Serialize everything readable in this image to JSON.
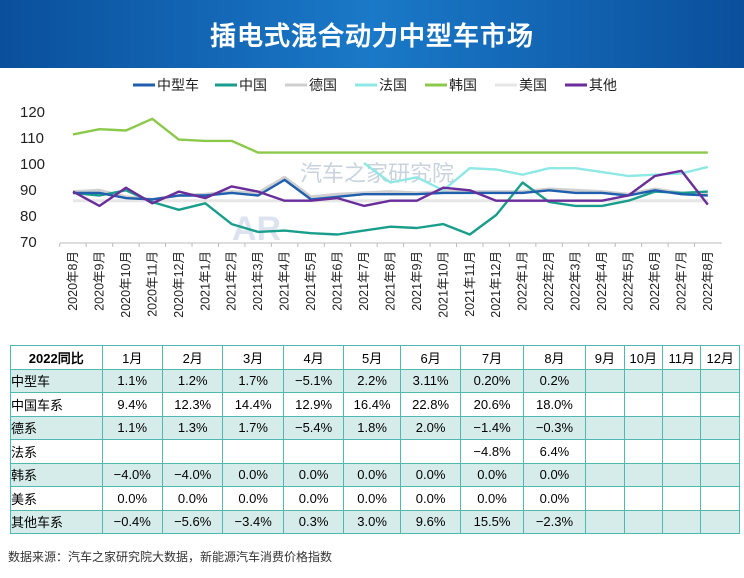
{
  "title": "插电式混合动力中型车市场",
  "chart_data": {
    "type": "line",
    "title": "插电式混合动力中型车市场",
    "ylim": [
      70,
      120
    ],
    "yticks": [
      70,
      80,
      90,
      100,
      110,
      120
    ],
    "legend_position": "top",
    "categories": [
      "2020年8月",
      "2020年9月",
      "2020年10月",
      "2020年11月",
      "2020年12月",
      "2021年1月",
      "2021年2月",
      "2021年3月",
      "2021年4月",
      "2021年5月",
      "2021年6月",
      "2021年7月",
      "2021年8月",
      "2021年9月",
      "2021年10月",
      "2021年11月",
      "2021年12月",
      "2022年1月",
      "2022年2月",
      "2022年3月",
      "2022年4月",
      "2022年5月",
      "2022年6月",
      "2022年7月",
      "2022年8月"
    ],
    "series": [
      {
        "name": "中型车",
        "color": "#1f5fae",
        "values": [
          88.5,
          88.5,
          86.5,
          86,
          87.5,
          87.5,
          88.5,
          87.5,
          93.5,
          86,
          87,
          88,
          88,
          88,
          88.5,
          88.5,
          88.5,
          88.5,
          89.5,
          88.5,
          88.5,
          87.5,
          89.5,
          88,
          87.5
        ]
      },
      {
        "name": "中国",
        "color": "#1a9e8c",
        "values": [
          88.5,
          87.5,
          89.5,
          85,
          82,
          84.5,
          76.5,
          73.5,
          74,
          73,
          72.5,
          74,
          75.5,
          75,
          76.5,
          72.5,
          80,
          92.5,
          85,
          83.5,
          83.5,
          85.5,
          89,
          88.5,
          89
        ]
      },
      {
        "name": "德国",
        "color": "#cfcfcf",
        "values": [
          89,
          89.5,
          87,
          86,
          87.5,
          88,
          89,
          88.5,
          94.5,
          87,
          88,
          88.5,
          89,
          88.5,
          89,
          89,
          89,
          89,
          90,
          89.5,
          89,
          88,
          90,
          88.5,
          88
        ]
      },
      {
        "name": "法国",
        "color": "#8ee8e4",
        "values": [
          null,
          null,
          null,
          null,
          null,
          null,
          null,
          null,
          null,
          null,
          null,
          100,
          92.5,
          94.5,
          89.5,
          98,
          97.5,
          95.5,
          98,
          98,
          96.5,
          95,
          95.5,
          96,
          98.5
        ]
      },
      {
        "name": "韩国",
        "color": "#8cc84b",
        "values": [
          111,
          113,
          112.5,
          117,
          109,
          108.5,
          108.5,
          104,
          104,
          104,
          104,
          104,
          104,
          104,
          104,
          104,
          104,
          104,
          104,
          104,
          104,
          104,
          104,
          104,
          104
        ]
      },
      {
        "name": "美国",
        "color": "#e6e6e6",
        "values": [
          85.5,
          85.5,
          85.5,
          85.5,
          85.5,
          85.5,
          85.5,
          85.5,
          85.5,
          85.5,
          85.5,
          85.5,
          85.5,
          85.5,
          85.5,
          85.5,
          85.5,
          85.5,
          85.5,
          85.5,
          85.5,
          85.5,
          85.5,
          85.5,
          85.5
        ]
      },
      {
        "name": "其他",
        "color": "#6a2e9a",
        "values": [
          89,
          83.5,
          90.5,
          84.5,
          89,
          86.5,
          91,
          89,
          85.5,
          85.5,
          86.5,
          83.5,
          85.5,
          85.5,
          90.5,
          89.5,
          85.5,
          85.5,
          85.5,
          85.5,
          85.5,
          87.5,
          95,
          97,
          84
        ]
      }
    ],
    "watermark": "汽车之家研究院"
  },
  "table": {
    "header": [
      "2022同比",
      "1月",
      "2月",
      "3月",
      "4月",
      "5月",
      "6月",
      "7月",
      "8月",
      "9月",
      "10月",
      "11月",
      "12月"
    ],
    "rows": [
      [
        "中型车",
        "1.1%",
        "1.2%",
        "1.7%",
        "−5.1%",
        "2.2%",
        "3.11%",
        "0.20%",
        "0.2%",
        "",
        "",
        "",
        ""
      ],
      [
        "中国车系",
        "9.4%",
        "12.3%",
        "14.4%",
        "12.9%",
        "16.4%",
        "22.8%",
        "20.6%",
        "18.0%",
        "",
        "",
        "",
        ""
      ],
      [
        "德系",
        "1.1%",
        "1.3%",
        "1.7%",
        "−5.4%",
        "1.8%",
        "2.0%",
        "−1.4%",
        "−0.3%",
        "",
        "",
        "",
        ""
      ],
      [
        "法系",
        "",
        "",
        "",
        "",
        "",
        "",
        "−4.8%",
        "6.4%",
        "",
        "",
        "",
        ""
      ],
      [
        "韩系",
        "−4.0%",
        "−4.0%",
        "0.0%",
        "0.0%",
        "0.0%",
        "0.0%",
        "0.0%",
        "0.0%",
        "",
        "",
        "",
        ""
      ],
      [
        "美系",
        "0.0%",
        "0.0%",
        "0.0%",
        "0.0%",
        "0.0%",
        "0.0%",
        "0.0%",
        "0.0%",
        "",
        "",
        "",
        ""
      ],
      [
        "其他车系",
        "−0.4%",
        "−5.6%",
        "−3.4%",
        "0.3%",
        "3.0%",
        "9.6%",
        "15.5%",
        "−2.3%",
        "",
        "",
        "",
        ""
      ]
    ]
  },
  "footer": "数据来源：汽车之家研究院大数据，新能源汽车消费价格指数"
}
